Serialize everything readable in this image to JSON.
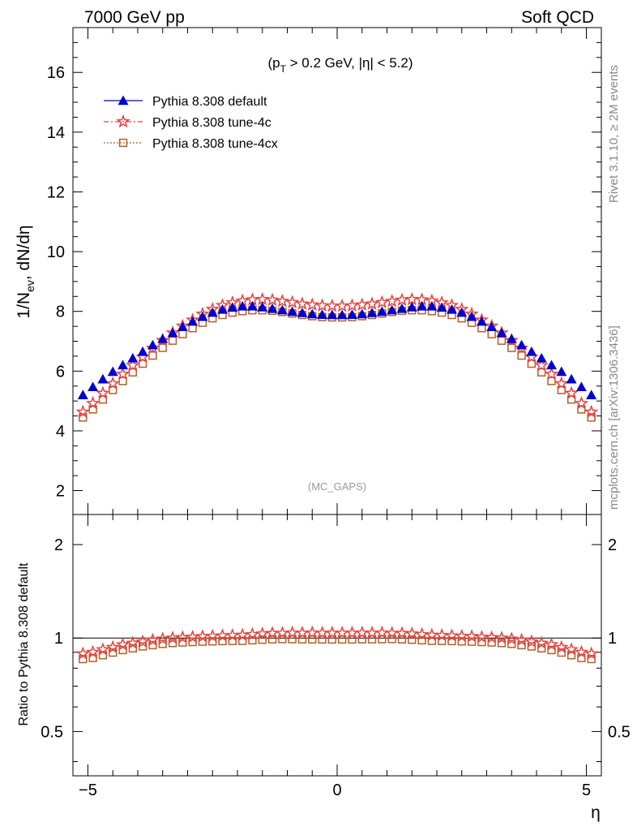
{
  "header": {
    "left_title": "7000 GeV pp",
    "right_title": "Soft QCD"
  },
  "side_text": {
    "rivet": "Rivet 3.1.10, ≥ 2M events",
    "mcplots": "mcplots.cern.ch [arXiv:1306.3436]"
  },
  "chart_data": [
    {
      "type": "scatter",
      "panel": "main",
      "cut_label": "(p_T > 0.2 GeV, |η| < 5.2)",
      "watermark": "(MC_GAPS)",
      "ylabel": "1/N_ev, dN/dη",
      "xlim": [
        -5.3,
        5.3
      ],
      "ylim": [
        1.2,
        17.5
      ],
      "yticks": [
        2,
        4,
        6,
        8,
        10,
        12,
        14,
        16
      ],
      "ytick_labels": [
        "2",
        "4",
        "6",
        "8",
        "10",
        "12",
        "14",
        "16"
      ],
      "x": [
        -5.1,
        -4.9,
        -4.7,
        -4.5,
        -4.3,
        -4.1,
        -3.9,
        -3.7,
        -3.5,
        -3.3,
        -3.1,
        -2.9,
        -2.7,
        -2.5,
        -2.3,
        -2.1,
        -1.9,
        -1.7,
        -1.5,
        -1.3,
        -1.1,
        -0.9,
        -0.7,
        -0.5,
        -0.3,
        -0.1,
        0.1,
        0.3,
        0.5,
        0.7,
        0.9,
        1.1,
        1.3,
        1.5,
        1.7,
        1.9,
        2.1,
        2.3,
        2.5,
        2.7,
        2.9,
        3.1,
        3.3,
        3.5,
        3.7,
        3.9,
        4.1,
        4.3,
        4.5,
        4.7,
        4.9,
        5.1
      ],
      "series": [
        {
          "name": "Pythia 8.308 default",
          "color": "#0000cc",
          "marker": "triangle",
          "values": [
            5.2,
            5.47,
            5.73,
            5.98,
            6.2,
            6.43,
            6.65,
            6.87,
            7.08,
            7.28,
            7.48,
            7.66,
            7.82,
            7.96,
            8.06,
            8.13,
            8.17,
            8.17,
            8.14,
            8.09,
            8.04,
            7.99,
            7.95,
            7.91,
            7.89,
            7.88,
            7.88,
            7.89,
            7.91,
            7.95,
            7.99,
            8.04,
            8.09,
            8.14,
            8.17,
            8.17,
            8.13,
            8.06,
            7.96,
            7.82,
            7.66,
            7.48,
            7.28,
            7.08,
            6.87,
            6.65,
            6.43,
            6.2,
            5.98,
            5.73,
            5.47,
            5.2
          ]
        },
        {
          "name": "Pythia 8.308 tune-4c",
          "color": "#e8403e",
          "marker": "star",
          "values": [
            4.63,
            4.92,
            5.26,
            5.58,
            5.9,
            6.19,
            6.47,
            6.77,
            7.03,
            7.28,
            7.51,
            7.71,
            7.91,
            8.07,
            8.2,
            8.29,
            8.35,
            8.39,
            8.4,
            8.38,
            8.34,
            8.3,
            8.25,
            8.22,
            8.19,
            8.18,
            8.18,
            8.19,
            8.22,
            8.25,
            8.3,
            8.34,
            8.38,
            8.4,
            8.39,
            8.35,
            8.29,
            8.2,
            8.07,
            7.91,
            7.71,
            7.51,
            7.28,
            7.03,
            6.77,
            6.47,
            6.19,
            5.9,
            5.58,
            5.26,
            4.92,
            4.63
          ]
        },
        {
          "name": "Pythia 8.308 tune-4cx",
          "color": "#b35f29",
          "marker": "square-open",
          "values": [
            4.45,
            4.72,
            5.05,
            5.37,
            5.67,
            5.96,
            6.25,
            6.52,
            6.78,
            7.02,
            7.24,
            7.44,
            7.62,
            7.77,
            7.88,
            7.96,
            8.01,
            8.04,
            8.04,
            8.02,
            7.98,
            7.93,
            7.88,
            7.84,
            7.81,
            7.8,
            7.8,
            7.81,
            7.84,
            7.88,
            7.93,
            7.98,
            8.02,
            8.04,
            8.04,
            8.01,
            7.96,
            7.88,
            7.77,
            7.62,
            7.44,
            7.24,
            7.02,
            6.78,
            6.52,
            6.25,
            5.96,
            5.67,
            5.37,
            5.05,
            4.72,
            4.45
          ]
        }
      ]
    },
    {
      "type": "scatter",
      "panel": "ratio",
      "ylabel": "Ratio to Pythia 8.308 default",
      "xlabel": "η",
      "xlim": [
        -5.3,
        5.3
      ],
      "ylim": [
        0.36,
        2.5
      ],
      "yscale": "log",
      "yticks": [
        0.5,
        1,
        2
      ],
      "ytick_labels": [
        "0.5",
        "1",
        "2"
      ],
      "xticks": [
        -5,
        0,
        5
      ],
      "xtick_labels": [
        "−5",
        "0",
        "5"
      ],
      "reference_line": 1,
      "series": [
        {
          "name": "Pythia 8.308 tune-4c",
          "color": "#e8403e",
          "marker": "star",
          "values": [
            0.89,
            0.9,
            0.918,
            0.933,
            0.952,
            0.963,
            0.973,
            0.985,
            0.993,
            1.0,
            1.004,
            1.007,
            1.012,
            1.014,
            1.017,
            1.02,
            1.022,
            1.027,
            1.032,
            1.036,
            1.037,
            1.039,
            1.038,
            1.039,
            1.038,
            1.038,
            1.038,
            1.038,
            1.039,
            1.038,
            1.039,
            1.037,
            1.036,
            1.032,
            1.027,
            1.022,
            1.02,
            1.017,
            1.014,
            1.012,
            1.007,
            1.004,
            1.0,
            0.993,
            0.985,
            0.973,
            0.963,
            0.952,
            0.933,
            0.918,
            0.9,
            0.89
          ]
        },
        {
          "name": "Pythia 8.308 tune-4cx",
          "color": "#b35f29",
          "marker": "square-open",
          "values": [
            0.856,
            0.863,
            0.881,
            0.898,
            0.915,
            0.927,
            0.94,
            0.949,
            0.958,
            0.964,
            0.968,
            0.971,
            0.974,
            0.976,
            0.978,
            0.979,
            0.98,
            0.984,
            0.988,
            0.991,
            0.993,
            0.992,
            0.991,
            0.991,
            0.99,
            0.99,
            0.99,
            0.99,
            0.991,
            0.991,
            0.992,
            0.993,
            0.991,
            0.988,
            0.984,
            0.98,
            0.979,
            0.978,
            0.976,
            0.974,
            0.971,
            0.968,
            0.964,
            0.958,
            0.949,
            0.94,
            0.927,
            0.915,
            0.898,
            0.881,
            0.863,
            0.856
          ]
        }
      ]
    }
  ]
}
